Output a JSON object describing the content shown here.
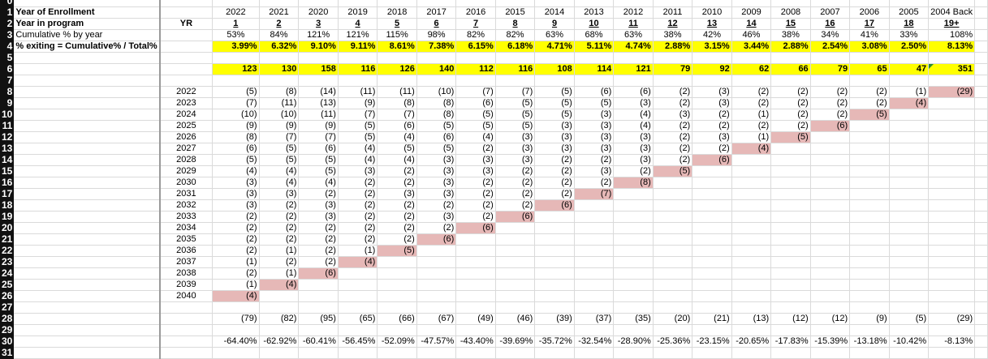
{
  "labels": {
    "year_of_enrollment": "Year of Enrollment",
    "year_in_program": "Year in program",
    "cumulative": "Cumulative % by year",
    "exiting": "% exiting = Cumulative% / Total%",
    "yr": "YR"
  },
  "enrollment_years": [
    "2022",
    "2021",
    "2020",
    "2019",
    "2018",
    "2017",
    "2016",
    "2015",
    "2014",
    "2013",
    "2012",
    "2011",
    "2010",
    "2009",
    "2008",
    "2007",
    "2006",
    "2005",
    "2004 Back"
  ],
  "program_years": [
    "1",
    "2",
    "3",
    "4",
    "5",
    "6",
    "7",
    "8",
    "9",
    "10",
    "11",
    "12",
    "13",
    "14",
    "15",
    "16",
    "17",
    "18",
    "19+"
  ],
  "cumulative_pct": [
    "53%",
    "84%",
    "121%",
    "121%",
    "115%",
    "98%",
    "82%",
    "82%",
    "63%",
    "68%",
    "63%",
    "38%",
    "42%",
    "46%",
    "38%",
    "34%",
    "41%",
    "33%",
    "108%"
  ],
  "exiting_pct": [
    "3.99%",
    "6.32%",
    "9.10%",
    "9.11%",
    "8.61%",
    "7.38%",
    "6.15%",
    "6.18%",
    "4.71%",
    "5.11%",
    "4.74%",
    "2.88%",
    "3.15%",
    "3.44%",
    "2.88%",
    "2.54%",
    "3.08%",
    "2.50%",
    "8.13%"
  ],
  "counts": [
    "123",
    "130",
    "158",
    "116",
    "126",
    "140",
    "112",
    "116",
    "108",
    "114",
    "121",
    "79",
    "92",
    "62",
    "66",
    "79",
    "65",
    "47",
    "351"
  ],
  "projection_years": [
    "2022",
    "2023",
    "2024",
    "2025",
    "2026",
    "2027",
    "2028",
    "2029",
    "2030",
    "2031",
    "2032",
    "2033",
    "2034",
    "2035",
    "2036",
    "2037",
    "2038",
    "2039",
    "2040"
  ],
  "matrix_columns": [
    [
      "(5)",
      "(7)",
      "(10)",
      "(9)",
      "(8)",
      "(6)",
      "(5)",
      "(4)",
      "(3)",
      "(3)",
      "(3)",
      "(2)",
      "(2)",
      "(2)",
      "(2)",
      "(1)",
      "(2)",
      "(1)",
      "(4)"
    ],
    [
      "(8)",
      "(11)",
      "(10)",
      "(9)",
      "(7)",
      "(5)",
      "(5)",
      "(4)",
      "(4)",
      "(3)",
      "(2)",
      "(2)",
      "(2)",
      "(2)",
      "(1)",
      "(2)",
      "(1)",
      "(4)"
    ],
    [
      "(14)",
      "(13)",
      "(11)",
      "(9)",
      "(7)",
      "(6)",
      "(5)",
      "(5)",
      "(4)",
      "(2)",
      "(3)",
      "(3)",
      "(2)",
      "(2)",
      "(2)",
      "(2)",
      "(6)"
    ],
    [
      "(11)",
      "(9)",
      "(7)",
      "(5)",
      "(5)",
      "(4)",
      "(4)",
      "(3)",
      "(2)",
      "(2)",
      "(2)",
      "(2)",
      "(2)",
      "(2)",
      "(1)",
      "(4)"
    ],
    [
      "(11)",
      "(8)",
      "(7)",
      "(6)",
      "(4)",
      "(5)",
      "(4)",
      "(2)",
      "(2)",
      "(3)",
      "(2)",
      "(2)",
      "(2)",
      "(2)",
      "(5)"
    ],
    [
      "(10)",
      "(8)",
      "(8)",
      "(5)",
      "(6)",
      "(5)",
      "(3)",
      "(3)",
      "(3)",
      "(3)",
      "(2)",
      "(3)",
      "(2)",
      "(6)"
    ],
    [
      "(7)",
      "(6)",
      "(5)",
      "(5)",
      "(4)",
      "(2)",
      "(3)",
      "(3)",
      "(2)",
      "(2)",
      "(2)",
      "(2)",
      "(6)"
    ],
    [
      "(7)",
      "(5)",
      "(5)",
      "(5)",
      "(3)",
      "(3)",
      "(3)",
      "(2)",
      "(2)",
      "(2)",
      "(2)",
      "(6)"
    ],
    [
      "(5)",
      "(5)",
      "(5)",
      "(3)",
      "(3)",
      "(3)",
      "(2)",
      "(2)",
      "(2)",
      "(2)",
      "(6)"
    ],
    [
      "(6)",
      "(5)",
      "(3)",
      "(3)",
      "(3)",
      "(3)",
      "(2)",
      "(3)",
      "(2)",
      "(7)"
    ],
    [
      "(6)",
      "(3)",
      "(4)",
      "(4)",
      "(3)",
      "(3)",
      "(3)",
      "(2)",
      "(8)"
    ],
    [
      "(2)",
      "(2)",
      "(3)",
      "(2)",
      "(2)",
      "(2)",
      "(2)",
      "(5)"
    ],
    [
      "(3)",
      "(3)",
      "(2)",
      "(2)",
      "(3)",
      "(2)",
      "(6)"
    ],
    [
      "(2)",
      "(2)",
      "(1)",
      "(2)",
      "(1)",
      "(4)"
    ],
    [
      "(2)",
      "(2)",
      "(2)",
      "(2)",
      "(5)"
    ],
    [
      "(2)",
      "(2)",
      "(2)",
      "(6)"
    ],
    [
      "(2)",
      "(2)",
      "(5)"
    ],
    [
      "(1)",
      "(4)"
    ],
    [
      "(29)"
    ]
  ],
  "column_totals": [
    "(79)",
    "(82)",
    "(95)",
    "(65)",
    "(66)",
    "(67)",
    "(49)",
    "(46)",
    "(39)",
    "(37)",
    "(35)",
    "(20)",
    "(21)",
    "(13)",
    "(12)",
    "(12)",
    "(9)",
    "(5)",
    "(29)"
  ],
  "column_pct": [
    "-64.40%",
    "-62.92%",
    "-60.41%",
    "-56.45%",
    "-52.09%",
    "-47.57%",
    "-43.40%",
    "-39.69%",
    "-35.72%",
    "-32.54%",
    "-28.90%",
    "-25.36%",
    "-23.15%",
    "-20.65%",
    "-17.83%",
    "-15.39%",
    "-13.18%",
    "-10.42%",
    "-8.13%"
  ],
  "colors": {
    "highlight_yellow": "#ffff00",
    "diagonal_pink": "#e6b8b7",
    "gridline": "#dadada"
  }
}
